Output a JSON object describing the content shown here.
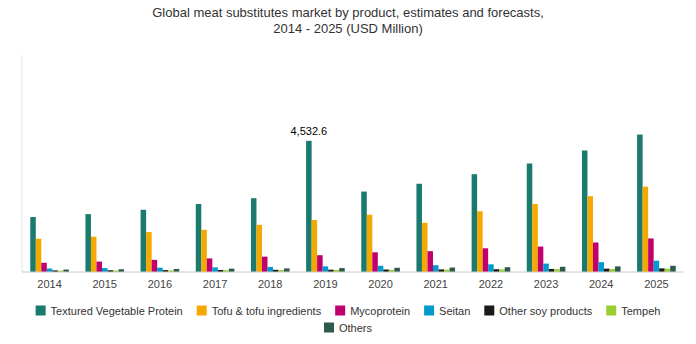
{
  "chart_data": {
    "type": "bar",
    "title": "Global meat substitutes market by product, estimates and forecasts,\n2014 - 2025 (USD Million)",
    "categories": [
      "2014",
      "2015",
      "2016",
      "2017",
      "2018",
      "2019",
      "2020",
      "2021",
      "2022",
      "2023",
      "2024",
      "2025"
    ],
    "series": [
      {
        "name": "Textured Vegetable Protein",
        "color": "#1a7a6e",
        "values": [
          1900,
          2000,
          2150,
          2350,
          2550,
          4532.6,
          2780,
          3050,
          3380,
          3750,
          4200,
          4750
        ]
      },
      {
        "name": "Tofu & tofu ingredients",
        "color": "#f5a800",
        "values": [
          1150,
          1220,
          1380,
          1460,
          1630,
          1800,
          1980,
          1700,
          2100,
          2350,
          2620,
          2950
        ]
      },
      {
        "name": "Mycoprotein",
        "color": "#c0006e",
        "values": [
          320,
          360,
          420,
          470,
          530,
          580,
          680,
          720,
          820,
          880,
          1020,
          1160
        ]
      },
      {
        "name": "Seitan",
        "color": "#009bcc",
        "values": [
          120,
          135,
          150,
          160,
          175,
          195,
          215,
          235,
          265,
          290,
          340,
          390
        ]
      },
      {
        "name": "Other soy products",
        "color": "#1a1a1a",
        "values": [
          55,
          60,
          65,
          70,
          76,
          80,
          86,
          90,
          96,
          105,
          115,
          125
        ]
      },
      {
        "name": "Tempeh",
        "color": "#9acd32",
        "values": [
          45,
          50,
          55,
          60,
          65,
          70,
          76,
          82,
          88,
          94,
          102,
          115
        ]
      },
      {
        "name": "Others",
        "color": "#2d5a4e",
        "values": [
          85,
          95,
          105,
          115,
          125,
          135,
          145,
          155,
          165,
          180,
          195,
          215
        ]
      }
    ],
    "annotations": [
      {
        "text": "4,532.6",
        "x": "2019",
        "y": 4532.6,
        "series": "Textured Vegetable Protein"
      }
    ],
    "ylim": [
      0,
      7500
    ],
    "tick_labels": "x",
    "grid": false,
    "legend": "bottom"
  }
}
